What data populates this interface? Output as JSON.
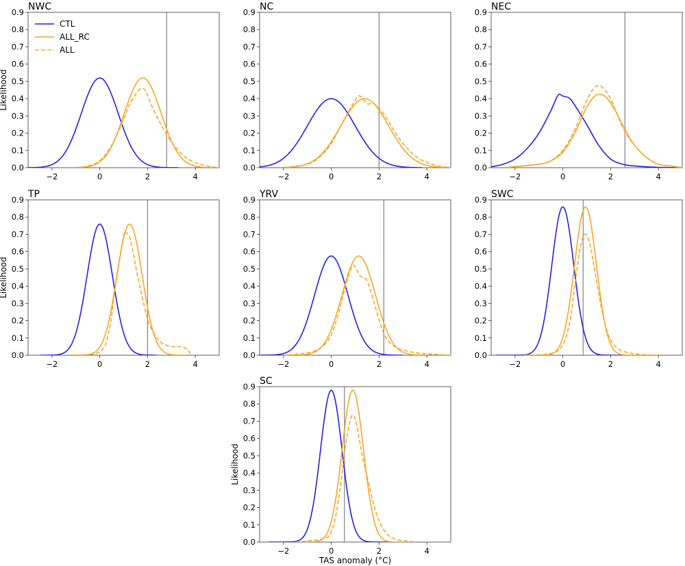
{
  "figure": {
    "xlabel": "TAS anomaly (°C)",
    "ylabel": "Likelihood",
    "xlim": [
      -3,
      5
    ],
    "ylim": [
      0,
      0.9
    ],
    "xticks": [
      -2,
      0,
      2,
      4
    ],
    "xtick_labels": [
      "−2",
      "0",
      "2",
      "4"
    ],
    "yticks": [
      0.0,
      0.1,
      0.2,
      0.3,
      0.4,
      0.5,
      0.6,
      0.7,
      0.8,
      0.9
    ],
    "ytick_labels": [
      "0.0",
      "0.1",
      "0.2",
      "0.3",
      "0.4",
      "0.5",
      "0.6",
      "0.7",
      "0.8",
      "0.9"
    ],
    "colors": {
      "CTL": "#1f1fe8",
      "ALL_RC": "#f5a623",
      "ALL": "#f5a623",
      "observed": "#808080"
    },
    "legend": [
      {
        "label": "CTL",
        "color": "#1f1fe8",
        "style": "solid"
      },
      {
        "label": "ALL_RC",
        "color": "#f5a623",
        "style": "solid"
      },
      {
        "label": "ALL",
        "color": "#f5a623",
        "style": "dashed"
      }
    ]
  },
  "chart_data": [
    {
      "type": "line",
      "region": "NWC",
      "title": "NWC",
      "xlim": [
        -3,
        5
      ],
      "ylim": [
        0,
        0.9
      ],
      "observed_x": 2.8,
      "series": [
        {
          "name": "CTL",
          "kind": "gauss",
          "mu": 0.0,
          "sigma": 0.77,
          "peak": 0.52,
          "xmin": -3.0,
          "xmax": 3.3
        },
        {
          "name": "ALL_RC",
          "kind": "gauss",
          "mu": 1.8,
          "sigma": 0.77,
          "peak": 0.52,
          "xmin": -1.1,
          "xmax": 5.0
        },
        {
          "name": "ALL",
          "kind": "points",
          "x": [
            -1.0,
            -0.5,
            0.0,
            0.5,
            1.0,
            1.3,
            1.8,
            2.2,
            2.6,
            3.0,
            3.5,
            4.0,
            4.5,
            5.0
          ],
          "y": [
            0.0,
            0.01,
            0.04,
            0.13,
            0.28,
            0.38,
            0.46,
            0.35,
            0.24,
            0.15,
            0.07,
            0.03,
            0.01,
            0.0
          ]
        }
      ]
    },
    {
      "type": "line",
      "region": "NC",
      "title": "NC",
      "xlim": [
        -3,
        5
      ],
      "ylim": [
        0,
        0.9
      ],
      "observed_x": 2.0,
      "series": [
        {
          "name": "CTL",
          "kind": "gauss",
          "mu": 0.0,
          "sigma": 1.0,
          "peak": 0.4,
          "xmin": -3.0,
          "xmax": 3.8
        },
        {
          "name": "ALL_RC",
          "kind": "gauss",
          "mu": 1.4,
          "sigma": 1.0,
          "peak": 0.4,
          "xmin": -2.0,
          "xmax": 5.0
        },
        {
          "name": "ALL",
          "kind": "points",
          "x": [
            -2.0,
            -1.0,
            -0.5,
            0.0,
            0.5,
            1.0,
            1.2,
            1.5,
            1.8,
            2.2,
            2.6,
            3.0,
            3.5,
            4.0,
            4.5,
            5.0
          ],
          "y": [
            0.0,
            0.02,
            0.06,
            0.14,
            0.27,
            0.39,
            0.415,
            0.37,
            0.37,
            0.31,
            0.22,
            0.14,
            0.07,
            0.03,
            0.01,
            0.0
          ]
        }
      ]
    },
    {
      "type": "line",
      "region": "NEC",
      "title": "NEC",
      "xlim": [
        -3,
        5
      ],
      "ylim": [
        0,
        0.9
      ],
      "observed_x": 2.6,
      "series": [
        {
          "name": "CTL",
          "kind": "points",
          "x": [
            -3.0,
            -2.5,
            -2.0,
            -1.5,
            -1.0,
            -0.5,
            -0.2,
            0.0,
            0.3,
            0.6,
            1.0,
            1.5,
            2.0,
            2.5,
            3.0,
            3.5,
            4.0,
            5.0
          ],
          "y": [
            0.005,
            0.02,
            0.05,
            0.11,
            0.2,
            0.33,
            0.42,
            0.415,
            0.4,
            0.34,
            0.25,
            0.13,
            0.05,
            0.02,
            0.01,
            0.005,
            0.002,
            0.0
          ]
        },
        {
          "name": "ALL_RC",
          "kind": "points",
          "x": [
            -2.5,
            -1.0,
            -0.5,
            0.0,
            0.5,
            1.0,
            1.4,
            1.8,
            2.2,
            2.6,
            3.0,
            3.5,
            4.0,
            4.5,
            5.0
          ],
          "y": [
            0.0,
            0.02,
            0.04,
            0.09,
            0.2,
            0.35,
            0.42,
            0.41,
            0.33,
            0.22,
            0.13,
            0.06,
            0.02,
            0.01,
            0.0
          ]
        },
        {
          "name": "ALL",
          "kind": "points",
          "x": [
            -2.5,
            -1.0,
            -0.5,
            0.0,
            0.5,
            1.0,
            1.3,
            1.5,
            1.7,
            2.0,
            2.3,
            2.6,
            3.0,
            3.5,
            4.0,
            4.5,
            5.0
          ],
          "y": [
            0.0,
            0.02,
            0.04,
            0.1,
            0.22,
            0.39,
            0.46,
            0.475,
            0.46,
            0.4,
            0.3,
            0.21,
            0.13,
            0.06,
            0.02,
            0.01,
            0.0
          ]
        }
      ]
    },
    {
      "type": "line",
      "region": "TP",
      "title": "TP",
      "xlim": [
        -3,
        5
      ],
      "ylim": [
        0,
        0.9
      ],
      "observed_x": 2.0,
      "series": [
        {
          "name": "CTL",
          "kind": "gauss",
          "mu": 0.0,
          "sigma": 0.53,
          "peak": 0.76,
          "xmin": -2.5,
          "xmax": 2.4
        },
        {
          "name": "ALL_RC",
          "kind": "gauss",
          "mu": 1.25,
          "sigma": 0.53,
          "peak": 0.76,
          "xmin": -1.2,
          "xmax": 3.6
        },
        {
          "name": "ALL",
          "kind": "points",
          "x": [
            -1.2,
            0.0,
            0.4,
            0.7,
            1.0,
            1.1,
            1.3,
            1.6,
            2.0,
            2.3,
            2.6,
            3.0,
            3.3,
            3.6,
            3.8
          ],
          "y": [
            0.0,
            0.02,
            0.15,
            0.45,
            0.69,
            0.71,
            0.66,
            0.45,
            0.21,
            0.12,
            0.07,
            0.05,
            0.05,
            0.04,
            0.01
          ]
        }
      ]
    },
    {
      "type": "line",
      "region": "YRV",
      "title": "YRV",
      "xlim": [
        -3,
        5
      ],
      "ylim": [
        0,
        0.9
      ],
      "observed_x": 2.2,
      "series": [
        {
          "name": "CTL",
          "kind": "gauss",
          "mu": 0.0,
          "sigma": 0.7,
          "peak": 0.575,
          "xmin": -3.0,
          "xmax": 3.0
        },
        {
          "name": "ALL_RC",
          "kind": "gauss",
          "mu": 1.15,
          "sigma": 0.7,
          "peak": 0.575,
          "xmin": -1.8,
          "xmax": 4.0
        },
        {
          "name": "ALL",
          "kind": "points",
          "x": [
            -1.8,
            -0.8,
            -0.3,
            0.0,
            0.3,
            0.6,
            0.9,
            1.2,
            1.5,
            1.8,
            2.1,
            2.4,
            2.8,
            3.3,
            3.8,
            4.3,
            5.0
          ],
          "y": [
            0.0,
            0.02,
            0.06,
            0.12,
            0.24,
            0.4,
            0.52,
            0.46,
            0.43,
            0.3,
            0.16,
            0.08,
            0.04,
            0.02,
            0.01,
            0.005,
            0.0
          ]
        }
      ]
    },
    {
      "type": "line",
      "region": "SWC",
      "title": "SWC",
      "xlim": [
        -3,
        5
      ],
      "ylim": [
        0,
        0.9
      ],
      "observed_x": 0.85,
      "series": [
        {
          "name": "CTL",
          "kind": "gauss",
          "mu": 0.0,
          "sigma": 0.46,
          "peak": 0.86,
          "xmin": -2.8,
          "xmax": 2.6
        },
        {
          "name": "ALL_RC",
          "kind": "gauss",
          "mu": 0.95,
          "sigma": 0.46,
          "peak": 0.86,
          "xmin": -1.6,
          "xmax": 4.0
        },
        {
          "name": "ALL",
          "kind": "points",
          "x": [
            -1.6,
            -0.5,
            0.0,
            0.3,
            0.5,
            0.7,
            0.9,
            1.1,
            1.3,
            1.5,
            1.7,
            1.9,
            2.2,
            2.6,
            3.2,
            4.0
          ],
          "y": [
            0.0,
            0.01,
            0.06,
            0.2,
            0.4,
            0.6,
            0.7,
            0.66,
            0.52,
            0.36,
            0.22,
            0.12,
            0.05,
            0.02,
            0.005,
            0.0
          ]
        }
      ]
    },
    {
      "type": "line",
      "region": "SC",
      "title": "SC",
      "xlim": [
        -3,
        5
      ],
      "ylim": [
        0,
        0.9
      ],
      "observed_x": 0.55,
      "series": [
        {
          "name": "CTL",
          "kind": "gauss",
          "mu": 0.0,
          "sigma": 0.45,
          "peak": 0.88,
          "xmin": -2.6,
          "xmax": 2.5
        },
        {
          "name": "ALL_RC",
          "kind": "gauss",
          "mu": 0.9,
          "sigma": 0.45,
          "peak": 0.88,
          "xmin": -1.5,
          "xmax": 3.5
        },
        {
          "name": "ALL",
          "kind": "points",
          "x": [
            -1.5,
            -0.3,
            0.0,
            0.2,
            0.4,
            0.6,
            0.8,
            0.95,
            1.1,
            1.3,
            1.5,
            1.7,
            1.9,
            2.2,
            2.6,
            3.2,
            3.6
          ],
          "y": [
            0.0,
            0.02,
            0.06,
            0.16,
            0.34,
            0.56,
            0.71,
            0.73,
            0.65,
            0.5,
            0.38,
            0.26,
            0.16,
            0.07,
            0.02,
            0.005,
            0.0
          ]
        }
      ]
    }
  ]
}
